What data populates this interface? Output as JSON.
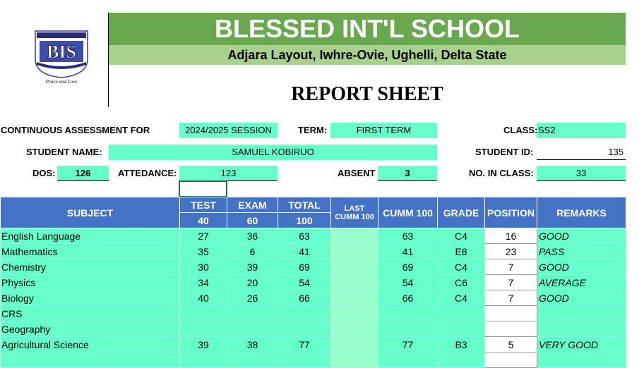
{
  "school": {
    "name": "BLESSED INT'L SCHOOL",
    "address": "Adjara Layout, Iwhre-Ovie, Ughelli, Delta State",
    "logo_text": "BIS",
    "motto": "Peace and Love"
  },
  "report_title": "REPORT SHEET",
  "info": {
    "ca_label": "CONTINUOUS ASSESSMENT FOR",
    "session": "2024/2025 SESSION",
    "term_label": "TERM:",
    "term": "FIRST TERM",
    "class_label": "CLASS:",
    "class": "SS2",
    "student_name_label": "STUDENT NAME:",
    "student_name": "SAMUEL KOBIRUO",
    "student_id_label": "STUDENT ID:",
    "student_id": "135",
    "dos_label": "DOS:",
    "dos": "126",
    "attendance_label": "ATTEDANCE:",
    "attendance": "123",
    "absent_label": "ABSENT",
    "absent": "3",
    "no_in_class_label": "NO. IN CLASS:",
    "no_in_class": "33"
  },
  "table": {
    "headers": {
      "subject": "SUBJECT",
      "test": "TEST",
      "exam": "EXAM",
      "total": "TOTAL",
      "last_cumm": "LAST CUMM 100",
      "cumm": "CUMM 100",
      "grade": "GRADE",
      "position": "POSITION",
      "remarks": "REMARKS"
    },
    "max_scores": {
      "test": "40",
      "exam": "60",
      "total": "100"
    },
    "rows": [
      {
        "subject": "English Language",
        "test": "27",
        "exam": "36",
        "total": "63",
        "last": "",
        "cumm": "63",
        "grade": "C4",
        "position": "16",
        "remarks": "GOOD"
      },
      {
        "subject": "Mathematics",
        "test": "35",
        "exam": "6",
        "total": "41",
        "last": "",
        "cumm": "41",
        "grade": "E8",
        "position": "23",
        "remarks": "PASS"
      },
      {
        "subject": "Chemistry",
        "test": "30",
        "exam": "39",
        "total": "69",
        "last": "",
        "cumm": "69",
        "grade": "C4",
        "position": "7",
        "remarks": "GOOD"
      },
      {
        "subject": "Physics",
        "test": "34",
        "exam": "20",
        "total": "54",
        "last": "",
        "cumm": "54",
        "grade": "C6",
        "position": "7",
        "remarks": "AVERAGE"
      },
      {
        "subject": "Biology",
        "test": "40",
        "exam": "26",
        "total": "66",
        "last": "",
        "cumm": "66",
        "grade": "C4",
        "position": "7",
        "remarks": "GOOD"
      },
      {
        "subject": "CRS",
        "test": "",
        "exam": "",
        "total": "",
        "last": "",
        "cumm": "",
        "grade": "",
        "position": "",
        "remarks": ""
      },
      {
        "subject": "Geography",
        "test": "",
        "exam": "",
        "total": "",
        "last": "",
        "cumm": "",
        "grade": "",
        "position": "",
        "remarks": ""
      },
      {
        "subject": "Agricultural Science",
        "test": "39",
        "exam": "38",
        "total": "77",
        "last": "",
        "cumm": "77",
        "grade": "B3",
        "position": "5",
        "remarks": "VERY GOOD"
      },
      {
        "subject": "",
        "test": "",
        "exam": "",
        "total": "",
        "last": "",
        "cumm": "",
        "grade": "",
        "position": "",
        "remarks": ""
      }
    ]
  },
  "colors": {
    "banner_green": "#6aa84f",
    "address_green": "#a9d18e",
    "field_mint": "#66ffcc",
    "header_blue": "#4472c4"
  }
}
